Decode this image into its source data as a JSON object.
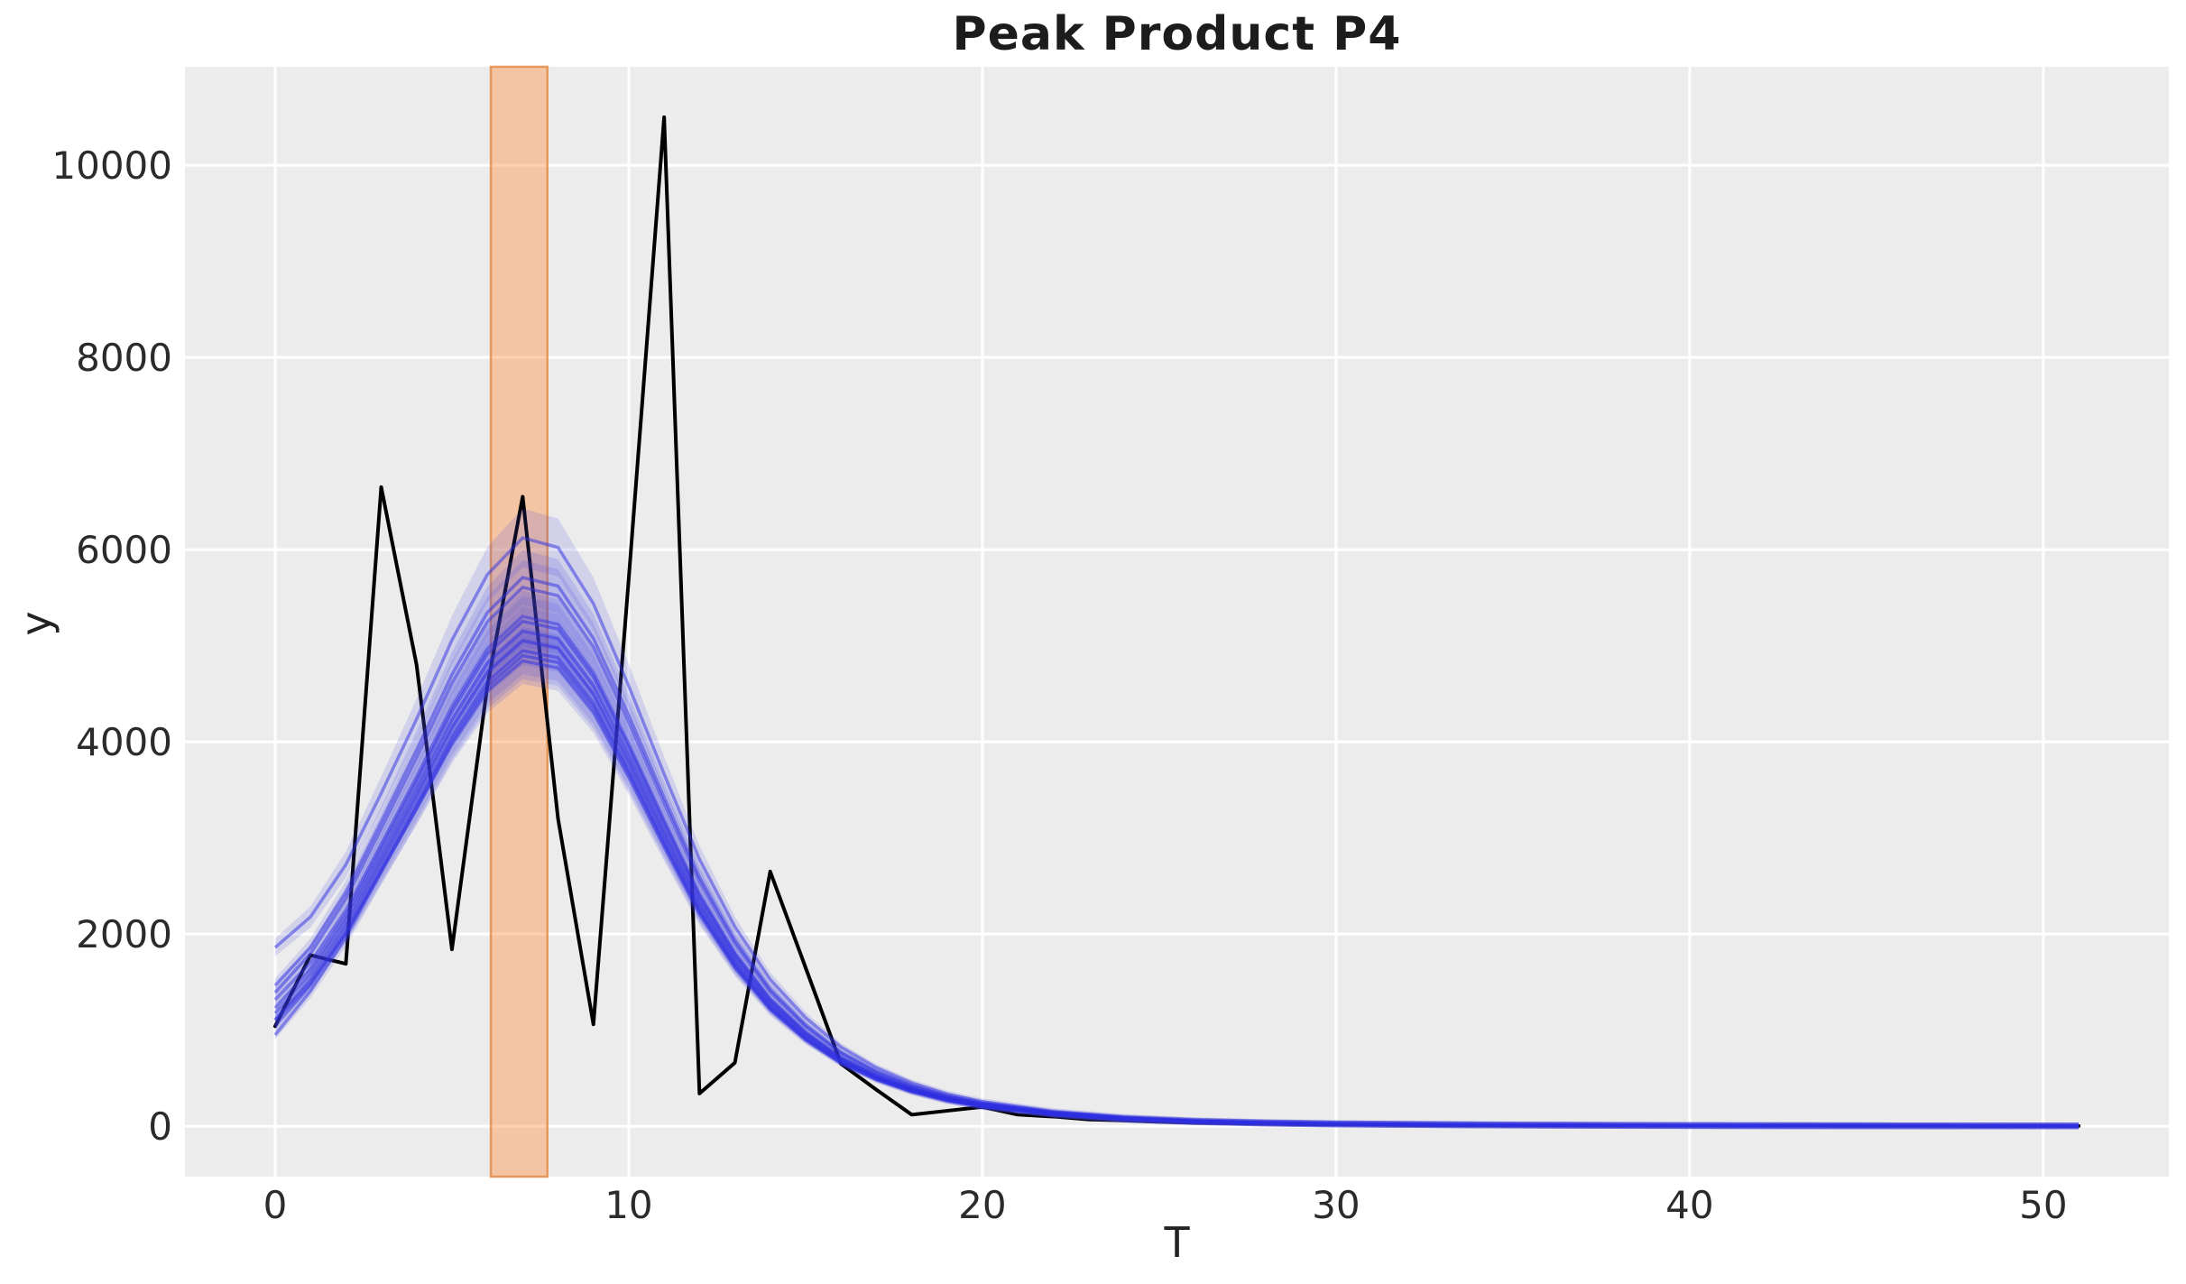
{
  "chart_data": {
    "type": "line",
    "title": "Peak Product P4",
    "xlabel": "T",
    "ylabel": "y",
    "xlim": [
      -2.55,
      53.55
    ],
    "ylim": [
      -525,
      11025
    ],
    "x_ticks": [
      0,
      10,
      20,
      30,
      40,
      50
    ],
    "y_ticks": [
      0,
      2000,
      4000,
      6000,
      8000,
      10000
    ],
    "grid": true,
    "background_color": "#ececec",
    "gridline_color": "#ffffff",
    "highlight_band": {
      "name": "peak-time-interval",
      "x_start": 6.1,
      "x_end": 7.7,
      "fill_color": "rgba(255,140,60,0.40)",
      "edge_color": "rgba(228,140,72,0.85)"
    },
    "observed_series": {
      "name": "observed-trajectory",
      "color": "#000000",
      "line_width": 4,
      "x": [
        0,
        1,
        2,
        3,
        4,
        5,
        6,
        7,
        8,
        9,
        10,
        11,
        12,
        13,
        14,
        15,
        16,
        17,
        18,
        19,
        20,
        21,
        22,
        23,
        24,
        25,
        26,
        27,
        28,
        29,
        30,
        31,
        32,
        33,
        34,
        35,
        36,
        37,
        38,
        39,
        40,
        41,
        42,
        43,
        44,
        45,
        46,
        47,
        48,
        49,
        50,
        51
      ],
      "y": [
        1040,
        1780,
        1690,
        6650,
        4800,
        1840,
        4580,
        6550,
        3200,
        1060,
        5700,
        10500,
        340,
        660,
        2650,
        1650,
        650,
        380,
        120,
        160,
        200,
        120,
        100,
        70,
        60,
        45,
        35,
        30,
        25,
        20,
        18,
        15,
        12,
        10,
        9,
        8,
        7,
        6,
        6,
        5,
        5,
        4,
        4,
        4,
        3,
        3,
        3,
        3,
        2,
        2,
        2,
        2
      ]
    },
    "ensemble": {
      "name": "posterior-sample-trajectories",
      "line_color_rgb": [
        45,
        45,
        225
      ],
      "line_alpha": 0.5,
      "line_width": 3.5,
      "band_color_rgb": [
        70,
        70,
        225
      ],
      "band_alpha": 0.16,
      "band_fraction": 0.05,
      "band_min_halfwidth": 35,
      "start_decay_constant": 2.2,
      "x": [
        0,
        1,
        2,
        3,
        4,
        5,
        6,
        7,
        8,
        9,
        10,
        11,
        12,
        13,
        14,
        15,
        16,
        17,
        18,
        19,
        20,
        22,
        24,
        26,
        28,
        30,
        34,
        38,
        42,
        46,
        51
      ],
      "base_shape": [
        0.215,
        0.3,
        0.41,
        0.545,
        0.68,
        0.82,
        0.935,
        1.0,
        0.985,
        0.89,
        0.75,
        0.6,
        0.455,
        0.34,
        0.25,
        0.185,
        0.135,
        0.1,
        0.074,
        0.055,
        0.042,
        0.025,
        0.015,
        0.0095,
        0.0064,
        0.0045,
        0.0026,
        0.0016,
        0.001,
        0.0007,
        0.0005
      ],
      "members": [
        {
          "peak": 6100,
          "start": 1860
        },
        {
          "peak": 5700,
          "start": 1465
        },
        {
          "peak": 5600,
          "start": 1390
        },
        {
          "peak": 5300,
          "start": 1315
        },
        {
          "peak": 5250,
          "start": 1230
        },
        {
          "peak": 5150,
          "start": 1175
        },
        {
          "peak": 5050,
          "start": 1110
        },
        {
          "peak": 4950,
          "start": 1040
        },
        {
          "peak": 4900,
          "start": 950
        },
        {
          "peak": 4840,
          "start": 1100
        }
      ]
    }
  }
}
